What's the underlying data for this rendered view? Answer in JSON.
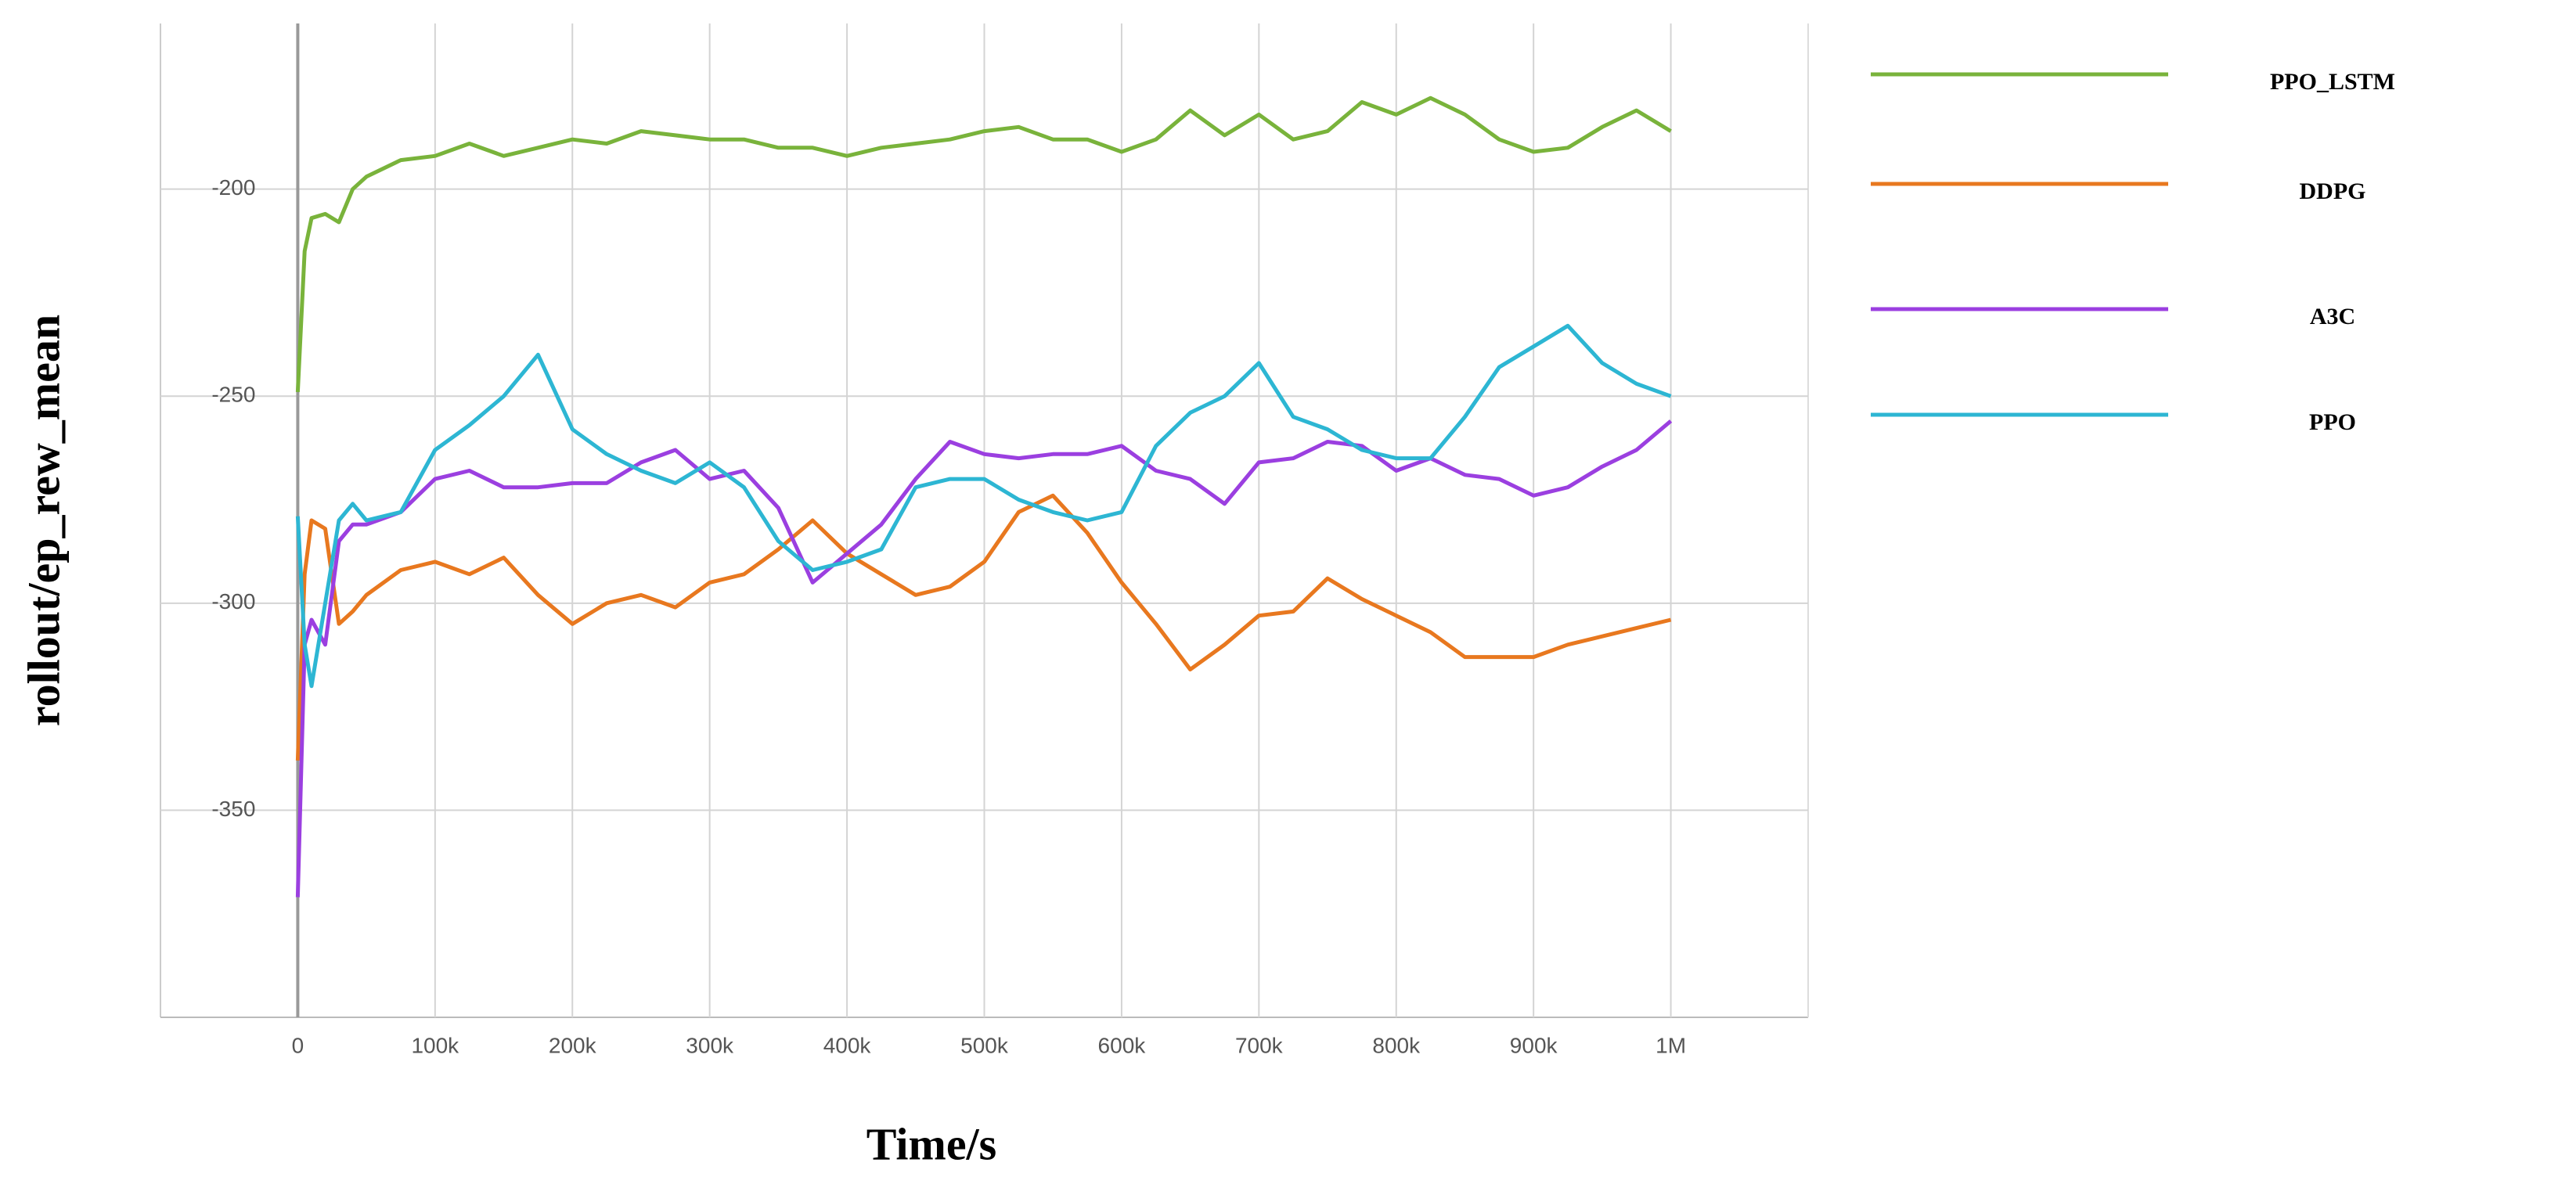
{
  "chart_data": {
    "type": "line",
    "xlabel": "Time/s",
    "ylabel": "rollout/ep_rew_mean",
    "x": [
      0,
      5000,
      10000,
      20000,
      30000,
      40000,
      50000,
      75000,
      100000,
      125000,
      150000,
      175000,
      200000,
      225000,
      250000,
      275000,
      300000,
      325000,
      350000,
      375000,
      400000,
      425000,
      450000,
      475000,
      500000,
      525000,
      550000,
      575000,
      600000,
      625000,
      650000,
      675000,
      700000,
      725000,
      750000,
      775000,
      800000,
      825000,
      850000,
      875000,
      900000,
      925000,
      950000,
      975000,
      1000000
    ],
    "series": [
      {
        "name": "PPO_LSTM",
        "color": "#79b33b",
        "values": [
          -249,
          -215,
          -207,
          -206,
          -208,
          -200,
          -197,
          -193,
          -192,
          -189,
          -192,
          -190,
          -188,
          -189,
          -186,
          -187,
          -188,
          -188,
          -190,
          -190,
          -192,
          -190,
          -189,
          -188,
          -186,
          -185,
          -188,
          -188,
          -191,
          -188,
          -181,
          -187,
          -182,
          -188,
          -186,
          -179,
          -182,
          -178,
          -182,
          -188,
          -191,
          -190,
          -185,
          -181,
          -186
        ]
      },
      {
        "name": "DDPG",
        "color": "#e8781f",
        "values": [
          -338,
          -293,
          -280,
          -282,
          -305,
          -302,
          -298,
          -292,
          -290,
          -293,
          -289,
          -298,
          -305,
          -300,
          -298,
          -301,
          -295,
          -293,
          -287,
          -280,
          -288,
          -293,
          -298,
          -296,
          -290,
          -278,
          -274,
          -283,
          -295,
          -305,
          -316,
          -310,
          -303,
          -302,
          -294,
          -299,
          -303,
          -307,
          -313,
          -313,
          -313,
          -310,
          -308,
          -306,
          -304
        ]
      },
      {
        "name": "A3C",
        "color": "#9b3fe0",
        "values": [
          -371,
          -310,
          -304,
          -310,
          -285,
          -281,
          -281,
          -278,
          -270,
          -268,
          -272,
          -272,
          -271,
          -271,
          -266,
          -263,
          -270,
          -268,
          -277,
          -295,
          -288,
          -281,
          -270,
          -261,
          -264,
          -265,
          -264,
          -264,
          -262,
          -268,
          -270,
          -276,
          -266,
          -265,
          -261,
          -262,
          -268,
          -265,
          -269,
          -270,
          -274,
          -272,
          -267,
          -263,
          -256
        ]
      },
      {
        "name": "PPO",
        "color": "#2db6d3",
        "values": [
          -279,
          -310,
          -320,
          -300,
          -280,
          -276,
          -280,
          -278,
          -263,
          -257,
          -250,
          -240,
          -258,
          -264,
          -268,
          -271,
          -266,
          -272,
          -285,
          -292,
          -290,
          -287,
          -272,
          -270,
          -270,
          -275,
          -278,
          -280,
          -278,
          -262,
          -254,
          -250,
          -242,
          -255,
          -258,
          -263,
          -265,
          -265,
          -255,
          -243,
          -238,
          -233,
          -242,
          -247,
          -250
        ]
      }
    ],
    "xlim": [
      -100000,
      1100000
    ],
    "xticks": [
      0,
      {
        "value": 100000,
        "label": "100k"
      },
      {
        "value": 200000,
        "label": "200k"
      },
      {
        "value": 300000,
        "label": "300k"
      },
      {
        "value": 400000,
        "label": "400k"
      },
      {
        "value": 500000,
        "label": "500k"
      },
      {
        "value": 600000,
        "label": "600k"
      },
      {
        "value": 700000,
        "label": "700k"
      },
      {
        "value": 800000,
        "label": "800k"
      },
      {
        "value": 900000,
        "label": "900k"
      },
      {
        "value": 1000000,
        "label": "1M"
      }
    ],
    "ylim": [
      -400,
      -160
    ],
    "yticks": [
      -350,
      -300,
      -250,
      -200
    ],
    "grid": true,
    "legend": "right"
  }
}
